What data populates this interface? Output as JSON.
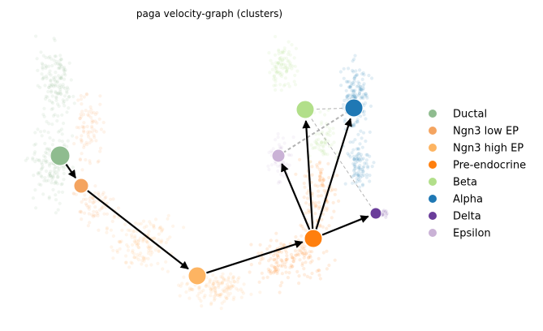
{
  "title": "paga velocity-graph (clusters)",
  "clusters": [
    {
      "id": "ductal",
      "label": "Ductal",
      "color": "#8fbc8f"
    },
    {
      "id": "ngn3-low-ep",
      "label": "Ngn3 low EP",
      "color": "#f4a460"
    },
    {
      "id": "ngn3-high-ep",
      "label": "Ngn3 high EP",
      "color": "#fdb462"
    },
    {
      "id": "pre-endocrine",
      "label": "Pre-endocrine",
      "color": "#ff7f0e"
    },
    {
      "id": "beta",
      "label": "Beta",
      "color": "#b2df8a"
    },
    {
      "id": "alpha",
      "label": "Alpha",
      "color": "#1f78b4"
    },
    {
      "id": "delta",
      "label": "Delta",
      "color": "#6a3d9a"
    },
    {
      "id": "epsilon",
      "label": "Epsilon",
      "color": "#cab2d6"
    }
  ],
  "transitions": [
    {
      "from": "ductal",
      "to": "ngn3-low-ep"
    },
    {
      "from": "ngn3-low-ep",
      "to": "ngn3-high-ep"
    },
    {
      "from": "ngn3-high-ep",
      "to": "pre-endocrine"
    },
    {
      "from": "pre-endocrine",
      "to": "epsilon"
    },
    {
      "from": "pre-endocrine",
      "to": "beta"
    },
    {
      "from": "pre-endocrine",
      "to": "alpha"
    },
    {
      "from": "pre-endocrine",
      "to": "delta"
    }
  ],
  "weak_connections": [
    {
      "from": "beta",
      "to": "alpha"
    },
    {
      "from": "epsilon",
      "to": "alpha"
    },
    {
      "from": "beta",
      "to": "delta"
    }
  ]
}
